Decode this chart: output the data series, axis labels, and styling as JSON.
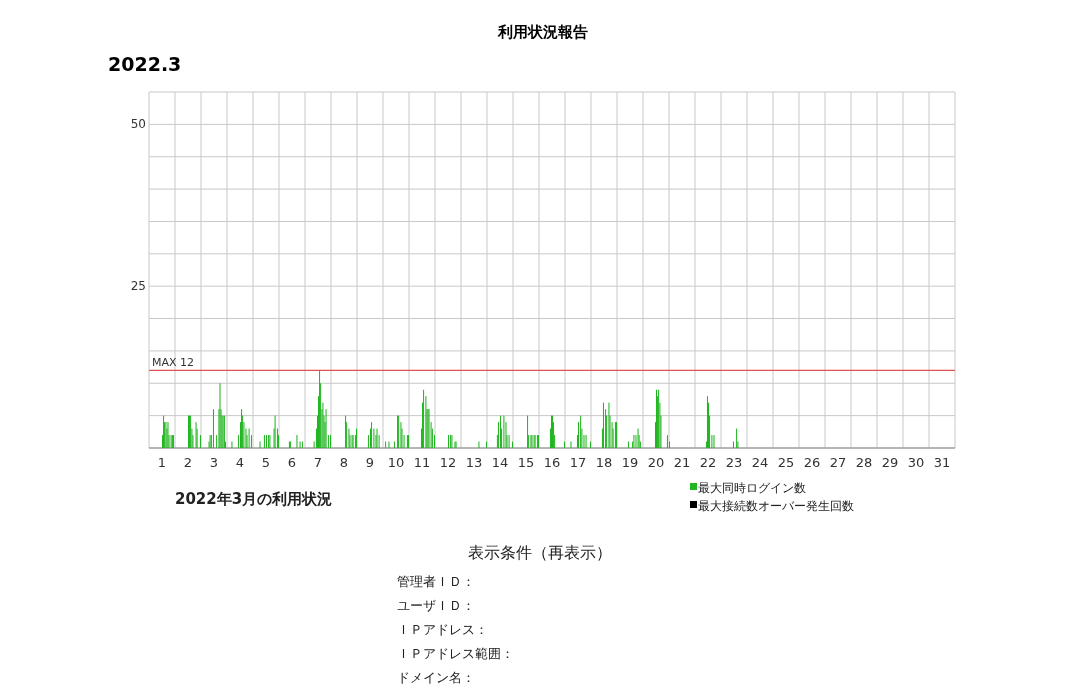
{
  "chart_data": {
    "type": "bar",
    "title": "利用状況報告",
    "subtitle": "2022.3",
    "annotations": [
      "2022年3月の利用状況",
      "表示条件（再表示）",
      "管理者ＩＤ：",
      "ユーザＩＤ：",
      "ＩＰアドレス：",
      "ＩＰアドレス範囲：",
      "ドメイン名："
    ],
    "xlim": [
      0.5,
      31.5
    ],
    "ylim": [
      0,
      55
    ],
    "xticks": [
      {
        "value": 0.5,
        "label": null
      },
      1,
      {
        "value": 1.5,
        "label": null
      },
      2,
      {
        "value": 2.5,
        "label": null
      },
      3,
      {
        "value": 3.5,
        "label": null
      },
      4,
      {
        "value": 4.5,
        "label": null
      },
      5,
      {
        "value": 5.5,
        "label": null
      },
      6,
      {
        "value": 6.5,
        "label": null
      },
      7,
      {
        "value": 7.5,
        "label": null
      },
      8,
      {
        "value": 8.5,
        "label": null
      },
      9,
      {
        "value": 9.5,
        "label": null
      },
      10,
      {
        "value": 10.5,
        "label": null
      },
      11,
      {
        "value": 11.5,
        "label": null
      },
      12,
      {
        "value": 12.5,
        "label": null
      },
      13,
      {
        "value": 13.5,
        "label": null
      },
      14,
      {
        "value": 14.5,
        "label": null
      },
      15,
      {
        "value": 15.5,
        "label": null
      },
      16,
      {
        "value": 16.5,
        "label": null
      },
      17,
      {
        "value": 17.5,
        "label": null
      },
      18,
      {
        "value": 18.5,
        "label": null
      },
      19,
      {
        "value": 19.5,
        "label": null
      },
      20,
      {
        "value": 20.5,
        "label": null
      },
      21,
      {
        "value": 21.5,
        "label": null
      },
      22,
      {
        "value": 22.5,
        "label": null
      },
      23,
      {
        "value": 23.5,
        "label": null
      },
      24,
      {
        "value": 24.5,
        "label": null
      },
      25,
      {
        "value": 25.5,
        "label": null
      },
      26,
      {
        "value": 26.5,
        "label": null
      },
      27,
      {
        "value": 27.5,
        "label": null
      },
      28,
      {
        "value": 28.5,
        "label": null
      },
      29,
      {
        "value": 29.5,
        "label": null
      },
      30,
      {
        "value": 30.5,
        "label": null
      },
      31,
      {
        "value": 31.5,
        "label": null
      }
    ],
    "yticks": [
      {
        "value": 0,
        "label": null
      },
      {
        "value": 5,
        "label": null
      },
      {
        "value": 10,
        "label": null
      },
      {
        "value": 15,
        "label": null
      },
      {
        "value": 20,
        "label": null
      },
      25,
      {
        "value": 30,
        "label": null
      },
      {
        "value": 35,
        "label": null
      },
      {
        "value": 40,
        "label": null
      },
      {
        "value": 45,
        "label": null
      },
      50,
      {
        "value": 55,
        "label": null
      }
    ],
    "grid": true,
    "legend": "bottom right",
    "ref_lines": [
      {
        "axis": "y",
        "value": 12,
        "label": "MAX 12",
        "color": "#e05050"
      }
    ],
    "series": [
      {
        "name": "最大同時ログイン数",
        "color": "#21b521",
        "x": [
          1.02,
          1.06,
          1.1,
          1.15,
          1.19,
          1.23,
          1.27,
          1.35,
          1.4,
          1.44,
          2.02,
          2.06,
          2.1,
          2.15,
          2.19,
          2.31,
          2.35,
          2.48,
          2.81,
          2.85,
          2.9,
          2.98,
          3.1,
          3.19,
          3.23,
          3.27,
          3.31,
          3.35,
          3.4,
          3.44,
          3.69,
          3.94,
          4.02,
          4.06,
          4.1,
          4.15,
          4.23,
          4.27,
          4.35,
          4.44,
          4.77,
          4.94,
          5.02,
          5.1,
          5.15,
          5.31,
          5.35,
          5.44,
          5.48,
          5.9,
          5.94,
          6.19,
          6.31,
          6.4,
          6.85,
          6.94,
          6.98,
          7.02,
          7.06,
          7.1,
          7.15,
          7.19,
          7.23,
          7.27,
          7.31,
          7.4,
          7.48,
          8.06,
          8.1,
          8.19,
          8.23,
          8.31,
          8.35,
          8.44,
          8.48,
          8.94,
          9.02,
          9.06,
          9.15,
          9.23,
          9.27,
          9.35,
          9.6,
          9.73,
          9.94,
          10.06,
          10.1,
          10.19,
          10.23,
          10.31,
          10.44,
          10.48,
          10.98,
          11.02,
          11.06,
          11.15,
          11.19,
          11.23,
          11.27,
          11.35,
          11.4,
          11.48,
          12.02,
          12.1,
          12.15,
          12.27,
          12.31,
          13.19,
          13.48,
          13.9,
          13.94,
          14.02,
          14.06,
          14.15,
          14.23,
          14.27,
          14.35,
          14.48,
          15.06,
          15.1,
          15.19,
          15.23,
          15.31,
          15.35,
          15.44,
          15.48,
          15.94,
          15.98,
          16.02,
          16.06,
          16.1,
          16.48,
          16.73,
          16.98,
          17.02,
          17.1,
          17.15,
          17.23,
          17.31,
          17.48,
          17.94,
          17.98,
          18.06,
          18.1,
          18.19,
          18.23,
          18.31,
          18.35,
          18.44,
          18.48,
          18.94,
          19.1,
          19.15,
          19.23,
          19.31,
          19.35,
          19.4,
          19.98,
          20.02,
          20.06,
          20.1,
          20.15,
          20.19,
          20.44,
          20.52,
          21.94,
          21.98,
          22.02,
          22.06,
          22.15,
          22.23,
          22.98,
          23.1,
          23.15
        ],
        "values": [
          2,
          5,
          4,
          4,
          3,
          4,
          2,
          2,
          2,
          2,
          5,
          5,
          5,
          3,
          2,
          4,
          3,
          2,
          1,
          2,
          2,
          6,
          2,
          6,
          10,
          6,
          5,
          5,
          5,
          1,
          1,
          2,
          4,
          6,
          5,
          4,
          3,
          2,
          3,
          2,
          1,
          2,
          2,
          2,
          2,
          3,
          5,
          3,
          2,
          1,
          1,
          2,
          1,
          1,
          1,
          3,
          5,
          8,
          12,
          10,
          6,
          7,
          5,
          4,
          6,
          2,
          2,
          5,
          4,
          3,
          2,
          2,
          2,
          2,
          3,
          2,
          3,
          4,
          3,
          2,
          3,
          2,
          1,
          1,
          1,
          5,
          5,
          4,
          3,
          2,
          2,
          2,
          3,
          7,
          9,
          8,
          6,
          6,
          6,
          4,
          3,
          2,
          2,
          2,
          2,
          1,
          1,
          1,
          1,
          2,
          4,
          5,
          3,
          5,
          4,
          2,
          2,
          1,
          5,
          2,
          2,
          2,
          2,
          2,
          2,
          2,
          3,
          5,
          5,
          4,
          2,
          1,
          1,
          2,
          4,
          5,
          3,
          2,
          2,
          1,
          3,
          7,
          6,
          5,
          7,
          5,
          4,
          3,
          4,
          4,
          1,
          1,
          2,
          2,
          3,
          2,
          1,
          4,
          9,
          8,
          9,
          7,
          5,
          2,
          1,
          1,
          8,
          7,
          5,
          2,
          2,
          1,
          3,
          1
        ]
      },
      {
        "name": "最大接続数オーバー発生回数",
        "color": "#000000"
      }
    ]
  }
}
